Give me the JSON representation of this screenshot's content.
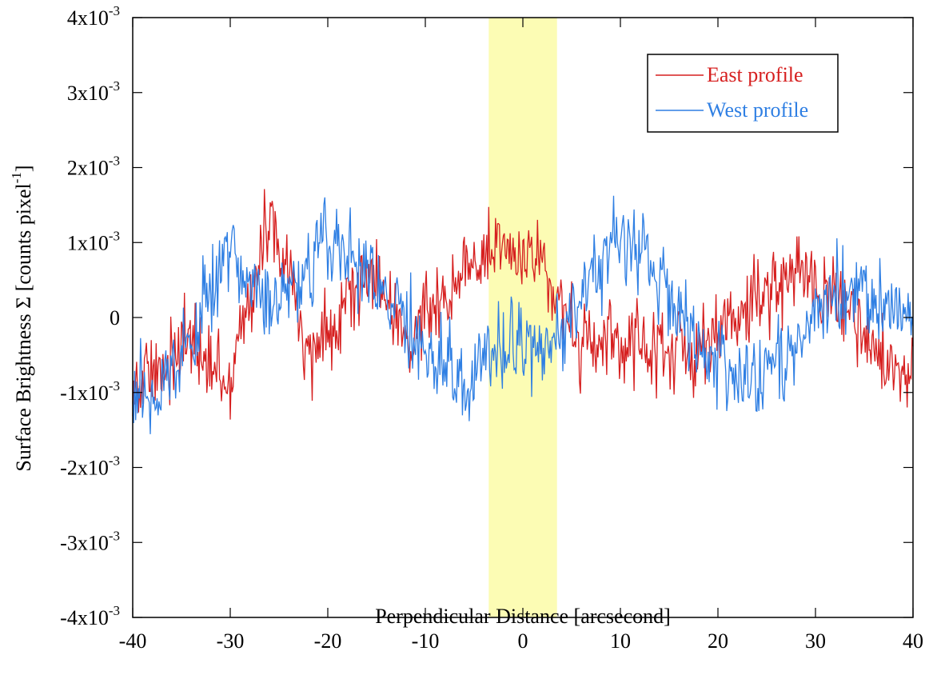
{
  "chart_data": {
    "type": "line",
    "title": "",
    "xlabel": "Perpendicular Distance [arcsecond]",
    "ylabel": "Surface Brightness Σ [counts pixel",
    "ylabel_sup": "-1",
    "ylabel_end": "]",
    "xlim": [
      -40,
      40
    ],
    "ylim": [
      -0.004,
      0.004
    ],
    "x_ticks": [
      -40,
      -30,
      -20,
      -10,
      0,
      10,
      20,
      30,
      40
    ],
    "x_tick_labels": [
      "-40",
      "-30",
      "-20",
      "-10",
      "0",
      "10",
      "20",
      "30",
      "40"
    ],
    "y_ticks": [
      {
        "value": 0.004,
        "mant": "4x10",
        "exp": "-3"
      },
      {
        "value": 0.003,
        "mant": "3x10",
        "exp": "-3"
      },
      {
        "value": 0.002,
        "mant": "2x10",
        "exp": "-3"
      },
      {
        "value": 0.001,
        "mant": "1x10",
        "exp": "-3"
      },
      {
        "value": 0,
        "mant": "0",
        "exp": ""
      },
      {
        "value": -0.001,
        "mant": "-1x10",
        "exp": "-3"
      },
      {
        "value": -0.002,
        "mant": "-2x10",
        "exp": "-3"
      },
      {
        "value": -0.003,
        "mant": "-3x10",
        "exp": "-3"
      },
      {
        "value": -0.004,
        "mant": "-4x10",
        "exp": "-3"
      }
    ],
    "highlight_band": {
      "x_start": -3.5,
      "x_end": 3.5,
      "color": "#fcfcb4"
    },
    "grid": false,
    "legend_position": "top-right",
    "series": [
      {
        "name": "East profile",
        "color": "#d61f1f",
        "x": [
          -40,
          -38,
          -36,
          -34,
          -32,
          -30,
          -28,
          -26,
          -24,
          -22,
          -20,
          -18,
          -16,
          -14,
          -12,
          -10,
          -8,
          -6,
          -4,
          -2,
          0,
          2,
          4,
          6,
          8,
          10,
          12,
          14,
          16,
          18,
          20,
          22,
          24,
          26,
          28,
          30,
          32,
          34,
          36,
          38,
          40
        ],
        "y": [
          -0.0009,
          -0.0008,
          -0.0005,
          -0.0003,
          -0.0007,
          -0.0008,
          0.0003,
          0.0012,
          0.0006,
          -0.0006,
          -0.0002,
          0.0003,
          0.0006,
          0.0002,
          -0.0003,
          0.0001,
          0.0003,
          0.0007,
          0.0008,
          0.0008,
          0.0009,
          0.0008,
          0.0001,
          -0.0004,
          -0.0004,
          -0.0004,
          -0.0003,
          -0.0004,
          -0.0005,
          -0.0005,
          -0.0002,
          0.0,
          0.0003,
          0.0004,
          0.0005,
          0.0005,
          0.0003,
          -0.0001,
          -0.0004,
          -0.0006,
          -0.0008
        ]
      },
      {
        "name": "West profile",
        "color": "#2f7fe3",
        "x": [
          -40,
          -38,
          -36,
          -34,
          -32,
          -30,
          -28,
          -26,
          -24,
          -22,
          -20,
          -18,
          -16,
          -14,
          -12,
          -10,
          -8,
          -6,
          -4,
          -2,
          0,
          2,
          4,
          6,
          8,
          10,
          12,
          14,
          16,
          18,
          20,
          22,
          24,
          26,
          28,
          30,
          32,
          34,
          36,
          38,
          40
        ],
        "y": [
          -0.0009,
          -0.001,
          -0.0007,
          -0.0003,
          0.0003,
          0.0008,
          0.0005,
          0.0001,
          0.0003,
          0.0007,
          0.0011,
          0.0008,
          0.0006,
          0.0003,
          0.0,
          -0.0004,
          -0.0006,
          -0.0009,
          -0.0005,
          -0.0004,
          -0.0003,
          -0.0005,
          -0.0002,
          0.0003,
          0.0008,
          0.0011,
          0.0009,
          0.0005,
          0.0,
          -0.0004,
          -0.0005,
          -0.0008,
          -0.0009,
          -0.0006,
          -0.0004,
          0.0001,
          0.0003,
          0.0004,
          0.0002,
          0.0001,
          0.0
        ]
      }
    ]
  }
}
